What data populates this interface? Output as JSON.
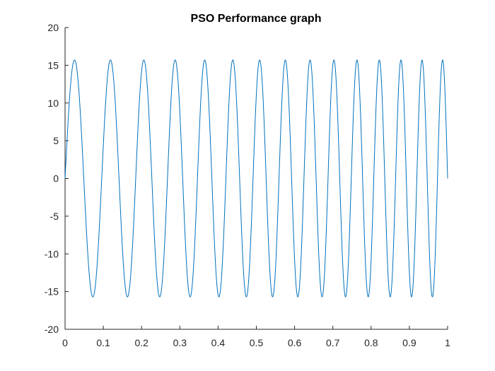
{
  "chart_data": {
    "type": "line",
    "title": "PSO Performance graph",
    "xlabel": "",
    "ylabel": "",
    "xlim": [
      0,
      1
    ],
    "ylim": [
      -20,
      20
    ],
    "xticks": [
      "0",
      "0.1",
      "0.2",
      "0.3",
      "0.4",
      "0.5",
      "0.6",
      "0.7",
      "0.8",
      "0.9",
      "1"
    ],
    "yticks": [
      "20",
      "15",
      "10",
      "5",
      "0",
      "-5",
      "-10",
      "-15",
      "-20"
    ],
    "grid": false,
    "series": [
      {
        "color": "#0072bd",
        "function": "y = A * sin(2*pi*(f0*x + k*x^2))",
        "amplitude": 15.7,
        "f0": 10,
        "k": 4.5,
        "x_range": [
          0,
          1
        ]
      }
    ]
  }
}
